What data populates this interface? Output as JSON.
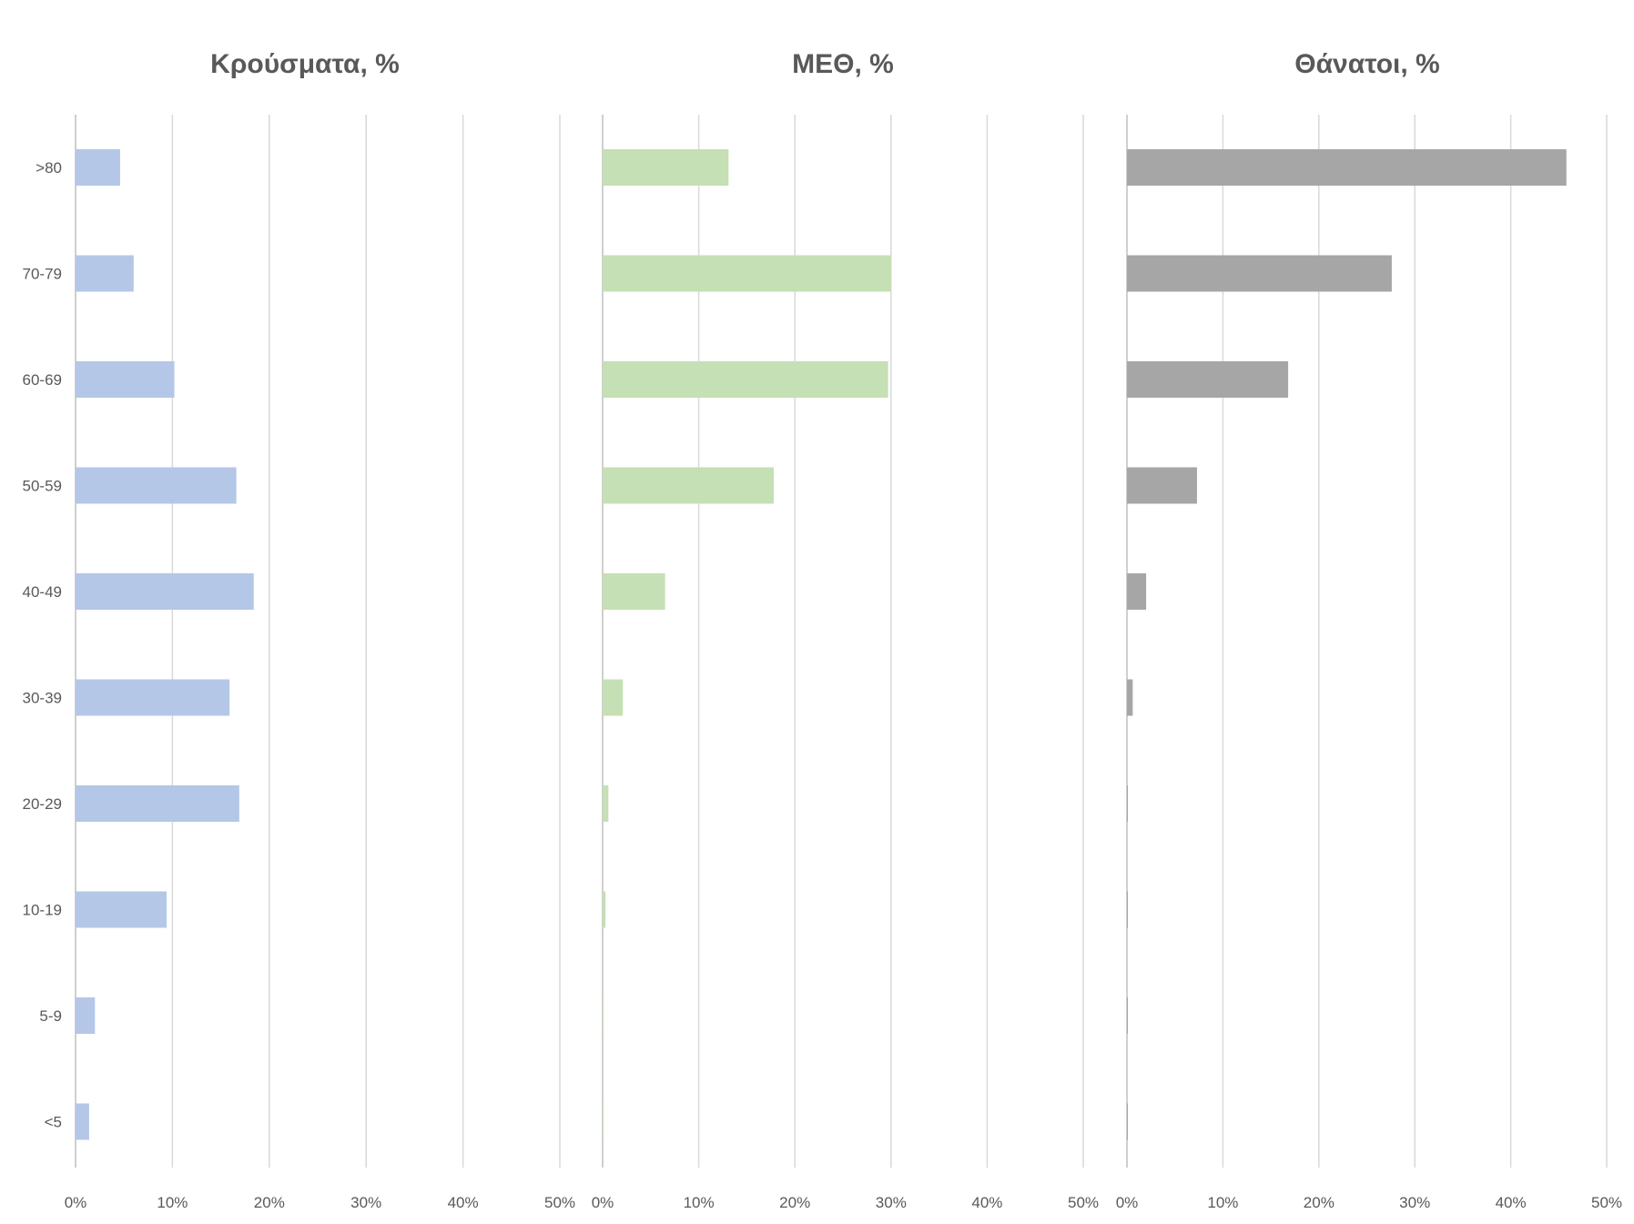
{
  "chart_data": {
    "type": "bar",
    "orientation": "horizontal",
    "categories": [
      ">80",
      "70-79",
      "60-69",
      "50-59",
      "40-49",
      "30-39",
      "20-29",
      "10-19",
      "5-9",
      "<5"
    ],
    "xlim": [
      0,
      50
    ],
    "xticks": [
      "0%",
      "10%",
      "20%",
      "30%",
      "40%",
      "50%"
    ],
    "grid": true,
    "series": [
      {
        "name": "Κρούσματα, %",
        "color": "#b4c7e7",
        "values": [
          4.6,
          6.0,
          10.2,
          16.6,
          18.4,
          15.9,
          16.9,
          9.4,
          2.0,
          1.4
        ]
      },
      {
        "name": "ΜΕΘ, %",
        "color": "#c5e0b4",
        "values": [
          13.1,
          30.0,
          29.7,
          17.8,
          6.5,
          2.1,
          0.6,
          0.3,
          0.1,
          0.1
        ]
      },
      {
        "name": "Θάνατοι, %",
        "color": "#a6a6a6",
        "values": [
          45.8,
          27.6,
          16.8,
          7.3,
          2.0,
          0.6,
          0.1,
          0.1,
          0.1,
          0.1
        ]
      }
    ]
  }
}
